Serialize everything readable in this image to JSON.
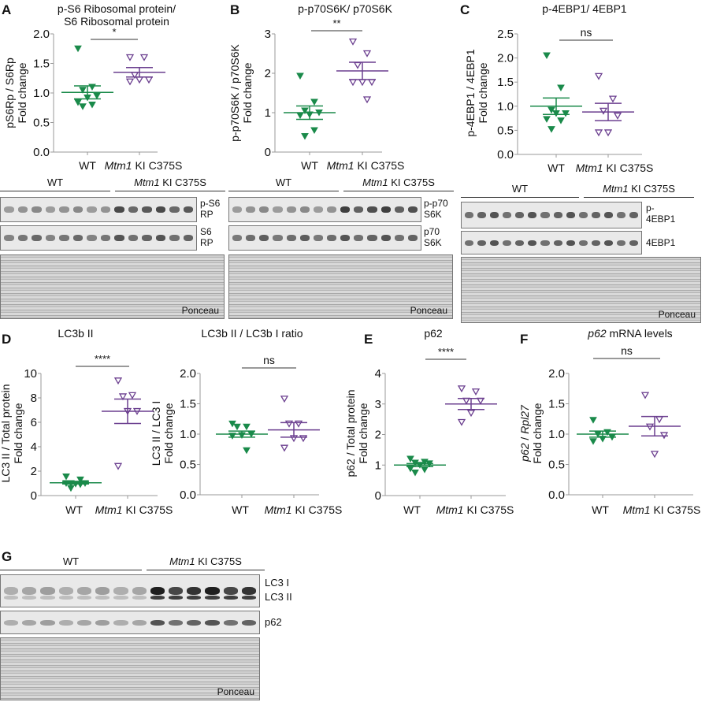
{
  "panel_letters": [
    "A",
    "B",
    "C",
    "D",
    "E",
    "F",
    "G"
  ],
  "groups": {
    "wt": "WT",
    "ki_italic": "Mtm1",
    "ki_rest": " KI C375S"
  },
  "colors": {
    "wt": "#1a8a4a",
    "ki": "#6b3f8f",
    "axis": "#999999"
  },
  "chart_data": [
    {
      "type": "scatter",
      "panel": "A",
      "title": [
        "p-S6 Ribosomal protein/",
        "S6 Ribosomal protein"
      ],
      "ylabel": [
        "pS6Rp / S6Rp",
        "Fold change"
      ],
      "ylim": [
        0,
        2.0
      ],
      "yticks": [
        "0.0",
        "0.5",
        "1.0",
        "1.5",
        "2.0"
      ],
      "significance": "*",
      "series": [
        {
          "group": "WT",
          "values": [
            1.75,
            1.1,
            1.05,
            0.95,
            0.92,
            0.84,
            0.8,
            0.77
          ],
          "mean": 1.01,
          "sem": 0.11
        },
        {
          "group": "Mtm1 KI C375S",
          "values": [
            1.6,
            1.6,
            1.3,
            1.22,
            1.22,
            1.19
          ],
          "mean": 1.35,
          "sem": 0.08
        }
      ]
    },
    {
      "type": "scatter",
      "panel": "B",
      "title": [
        "p-p70S6K/ p70S6K"
      ],
      "ylabel": [
        "p-p70S6K / p70S6K",
        "Fold change"
      ],
      "ylim": [
        0,
        3
      ],
      "yticks": [
        "0",
        "1",
        "2",
        "3"
      ],
      "significance": "**",
      "series": [
        {
          "group": "WT",
          "values": [
            1.93,
            1.27,
            1.05,
            1.0,
            0.95,
            0.93,
            0.55,
            0.4
          ],
          "mean": 1.0,
          "sem": 0.17
        },
        {
          "group": "Mtm1 KI C375S",
          "values": [
            2.8,
            2.5,
            2.2,
            1.77,
            1.77,
            1.77,
            1.33
          ],
          "mean": 2.06,
          "sem": 0.22
        }
      ]
    },
    {
      "type": "scatter",
      "panel": "C",
      "title": [
        "p-4EBP1/ 4EBP1"
      ],
      "ylabel": [
        "p-4EBP1 / 4EBP1",
        "Fold change"
      ],
      "ylim": [
        0,
        2.5
      ],
      "yticks": [
        "0.0",
        "0.5",
        "1.0",
        "1.5",
        "2.0",
        "2.5"
      ],
      "significance": "ns",
      "series": [
        {
          "group": "WT",
          "values": [
            2.05,
            1.38,
            0.92,
            0.85,
            0.85,
            0.73,
            0.7,
            0.52
          ],
          "mean": 1.0,
          "sem": 0.17
        },
        {
          "group": "Mtm1 KI C375S",
          "values": [
            1.62,
            1.15,
            0.9,
            0.8,
            0.45,
            0.45
          ],
          "mean": 0.88,
          "sem": 0.18
        }
      ]
    },
    {
      "type": "scatter",
      "panel": "D",
      "title": [
        "LC3b II"
      ],
      "ylabel": [
        "LC3 II / Total protein",
        "Fold change"
      ],
      "ylim": [
        0,
        10
      ],
      "yticks": [
        "0",
        "2",
        "4",
        "6",
        "8",
        "10"
      ],
      "significance": "****",
      "series": [
        {
          "group": "WT",
          "values": [
            1.55,
            1.3,
            1.0,
            1.0,
            0.95,
            1.0,
            0.9,
            0.6
          ],
          "mean": 1.05,
          "sem": 0.1
        },
        {
          "group": "Mtm1 KI C375S",
          "values": [
            9.4,
            8.2,
            8.1,
            6.9,
            6.9,
            2.4
          ],
          "mean": 6.9,
          "sem": 1.0
        }
      ]
    },
    {
      "type": "scatter",
      "panel": "D",
      "title": [
        "LC3b II / LC3b I ratio"
      ],
      "ylabel": [
        "LC3 II / LC3 I",
        "Fold change"
      ],
      "ylim": [
        0,
        2.0
      ],
      "yticks": [
        "0.0",
        "0.5",
        "1.0",
        "1.5",
        "2.0"
      ],
      "significance": "ns",
      "series": [
        {
          "group": "WT",
          "values": [
            1.17,
            1.12,
            1.12,
            1.0,
            0.98,
            0.97,
            0.73
          ],
          "mean": 1.0,
          "sem": 0.05
        },
        {
          "group": "Mtm1 KI C375S",
          "values": [
            1.58,
            1.17,
            1.17,
            0.93,
            0.93,
            0.77
          ],
          "mean": 1.07,
          "sem": 0.12
        }
      ]
    },
    {
      "type": "scatter",
      "panel": "E",
      "title": [
        "p62"
      ],
      "ylabel": [
        "p62 / Total protein",
        "Fold change"
      ],
      "ylim": [
        0,
        4
      ],
      "yticks": [
        "0",
        "1",
        "2",
        "3",
        "4"
      ],
      "significance": "****",
      "series": [
        {
          "group": "WT",
          "values": [
            1.2,
            1.1,
            1.07,
            1.05,
            1.0,
            0.88,
            0.85,
            0.75
          ],
          "mean": 1.0,
          "sem": 0.05
        },
        {
          "group": "Mtm1 KI C375S",
          "values": [
            3.5,
            3.4,
            3.1,
            3.1,
            2.7,
            2.4
          ],
          "mean": 3.0,
          "sem": 0.18
        }
      ]
    },
    {
      "type": "scatter",
      "panel": "F",
      "title": [
        "p62",
        " mRNA levels"
      ],
      "ylabel": [
        "p62",
        " / ",
        "Rpl27",
        "Fold change"
      ],
      "ylim": [
        0,
        2.0
      ],
      "yticks": [
        "0.0",
        "0.5",
        "1.0",
        "1.5",
        "2.0"
      ],
      "significance": "ns",
      "series": [
        {
          "group": "WT",
          "values": [
            1.23,
            1.03,
            1.0,
            0.95,
            0.92,
            0.88
          ],
          "mean": 1.0,
          "sem": 0.05
        },
        {
          "group": "Mtm1 KI C375S",
          "values": [
            1.64,
            1.24,
            1.12,
            0.98,
            0.67
          ],
          "mean": 1.13,
          "sem": 0.16
        }
      ]
    }
  ],
  "blots": {
    "A": {
      "rows": [
        "p-S6\nRP",
        "S6\nRP"
      ],
      "ponceau": "Ponceau"
    },
    "B": {
      "rows": [
        "p-p70\nS6K",
        "p70\nS6K"
      ],
      "ponceau": "Ponceau"
    },
    "C": {
      "rows": [
        "p-\n4EBP1",
        "4EBP1"
      ],
      "ponceau": "Ponceau"
    },
    "G": {
      "rows": [
        "LC3 I\nLC3 II",
        "p62"
      ],
      "ponceau": "Ponceau"
    }
  }
}
